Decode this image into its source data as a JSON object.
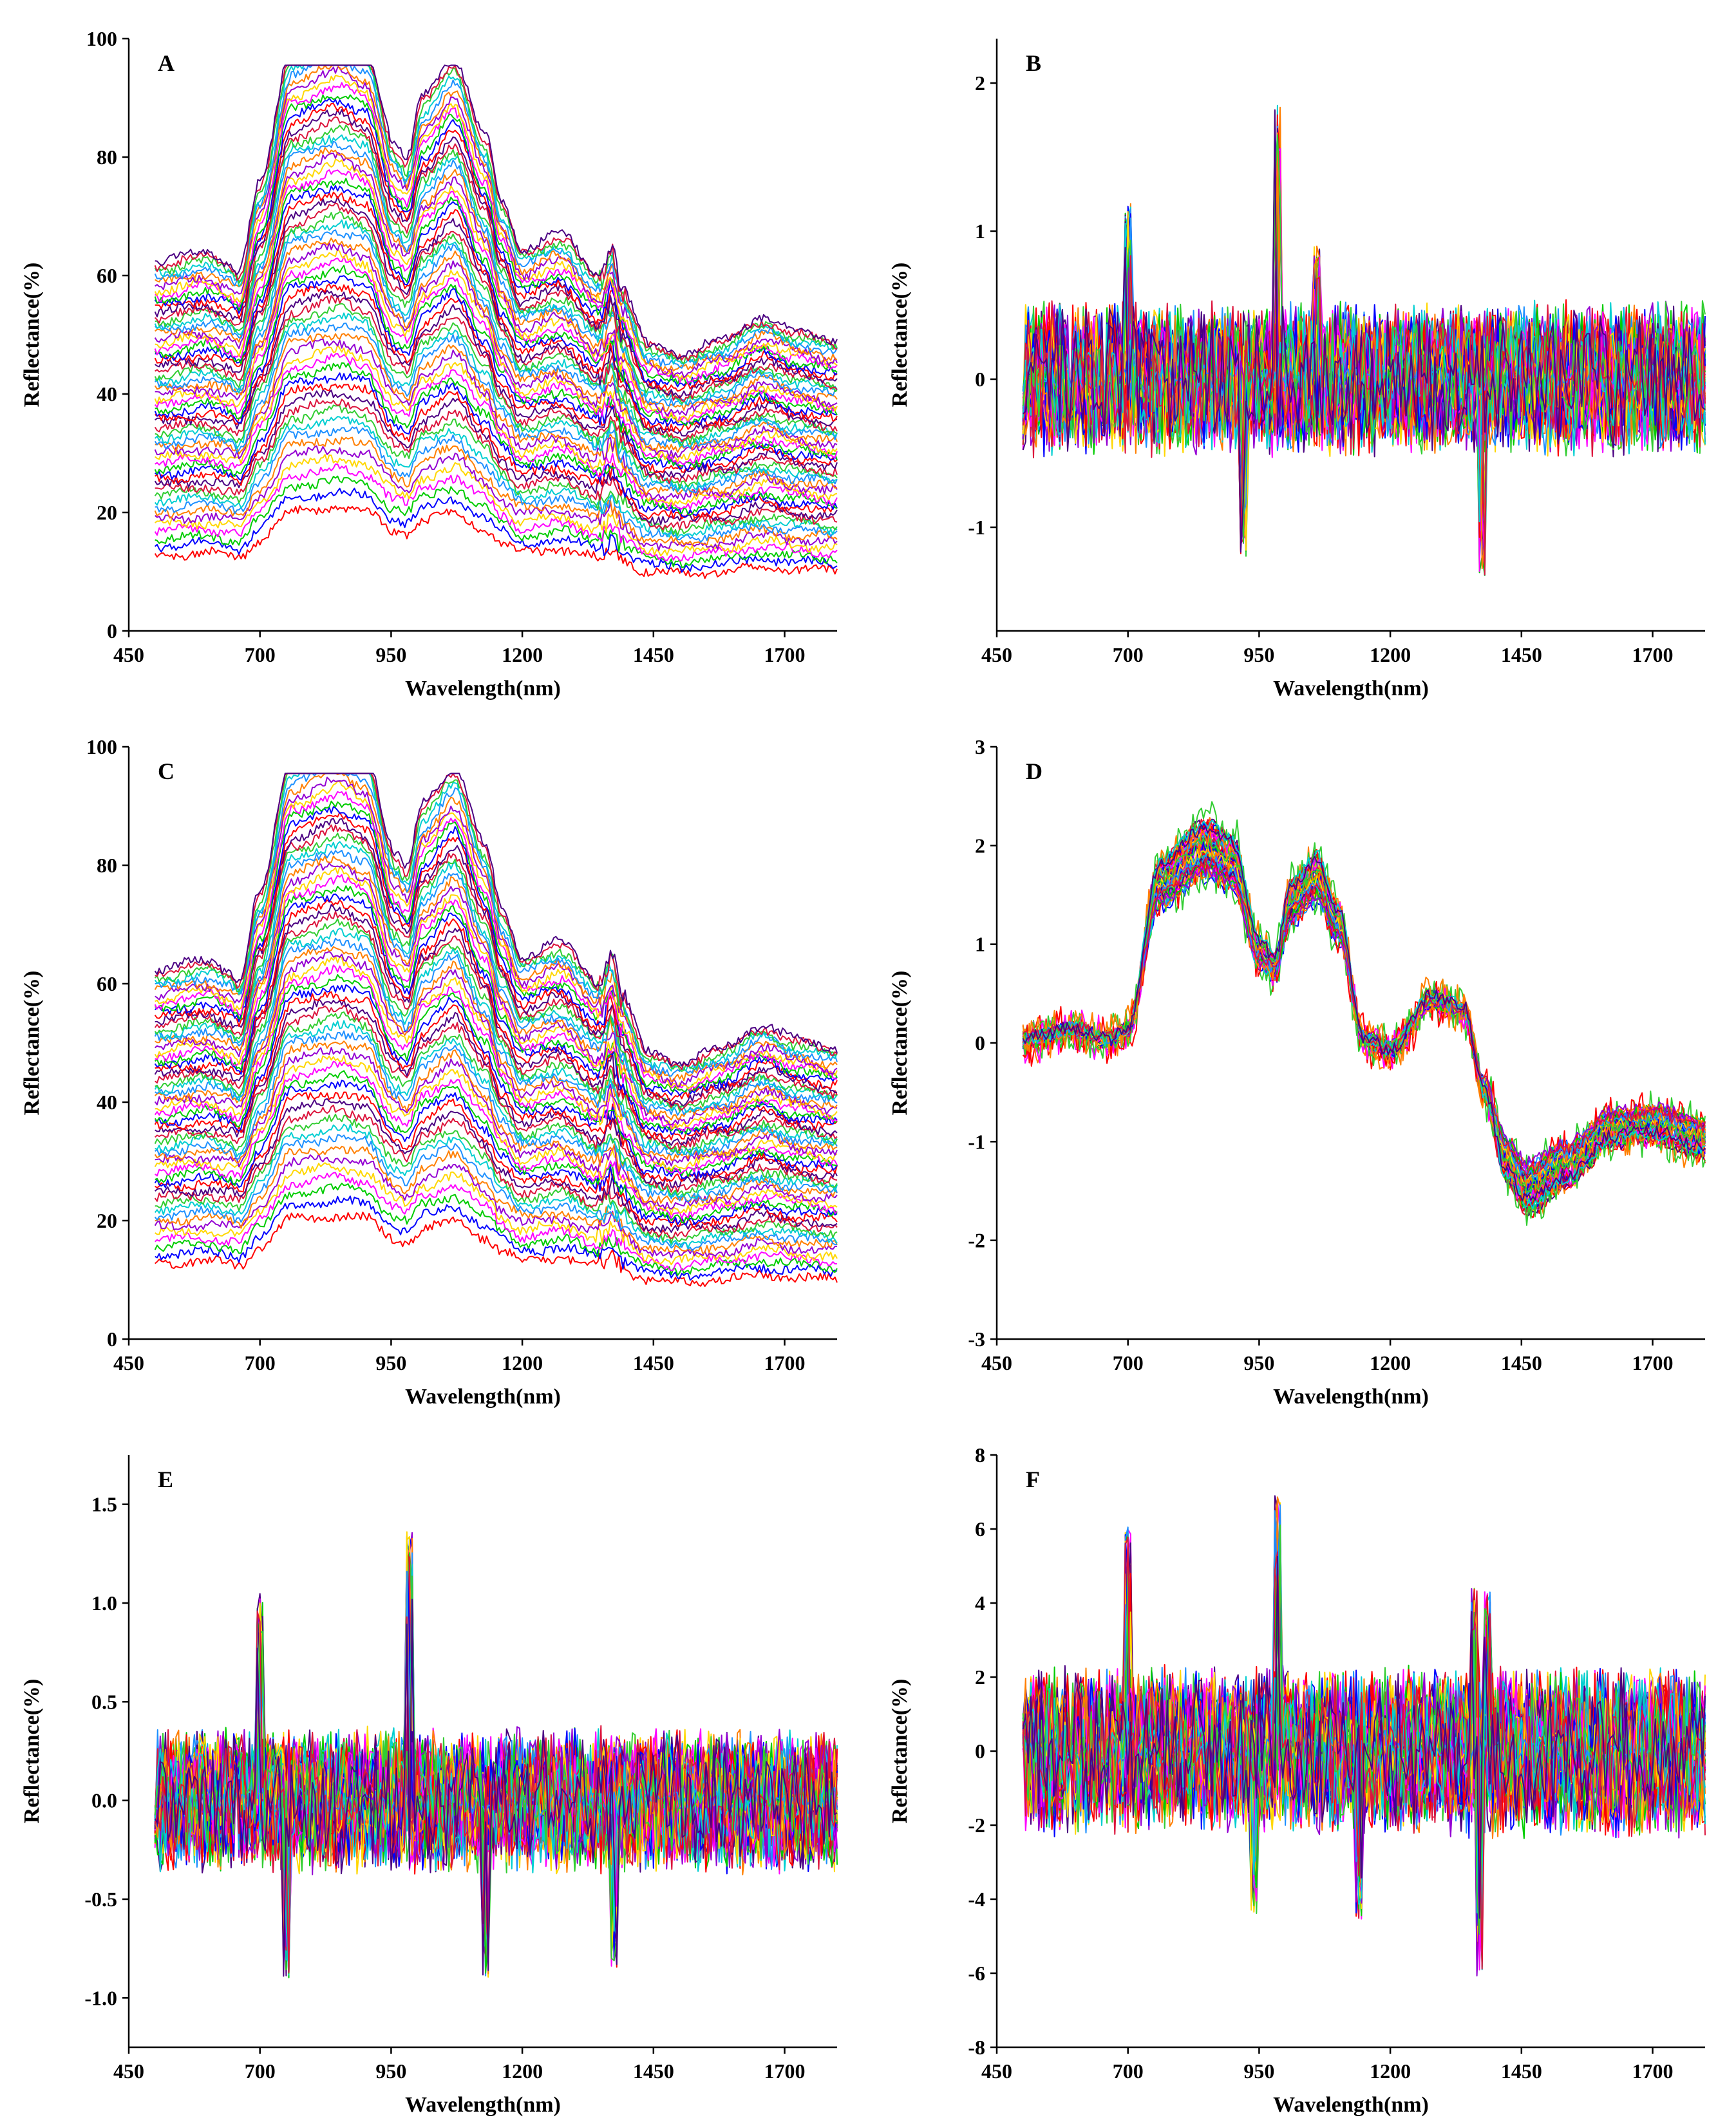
{
  "figure": {
    "series_count_per_panel": 60,
    "palette": [
      "#ff0000",
      "#0000ff",
      "#00cc00",
      "#ff00ff",
      "#ffd700",
      "#9400d3",
      "#ff7f00",
      "#1e90ff",
      "#00ced1",
      "#32cd32",
      "#dc143c",
      "#4b0082"
    ]
  },
  "chart_data": [
    {
      "id": "A",
      "type": "line",
      "panel_label": "A",
      "xlabel": "Wavelength(nm)",
      "ylabel": "Reflectance(%)",
      "xlim": [
        450,
        1800
      ],
      "ylim": [
        0,
        100
      ],
      "xticks": [
        450,
        700,
        950,
        1200,
        1450,
        1700
      ],
      "xtick_labels": [
        "450",
        "700",
        "950",
        "1200",
        "1450",
        "1700"
      ],
      "yticks": [
        0,
        20,
        40,
        60,
        80,
        100
      ],
      "ytick_labels": [
        "0",
        "20",
        "40",
        "60",
        "80",
        "100"
      ],
      "kind": "raw",
      "x_range": [
        500,
        1800
      ],
      "series_range": [
        16,
        78
      ],
      "shape_x": [
        500,
        600,
        640,
        660,
        700,
        760,
        850,
        900,
        960,
        980,
        1010,
        1070,
        1130,
        1160,
        1200,
        1270,
        1350,
        1370,
        1390,
        1440,
        1500,
        1580,
        1660,
        1720,
        1800
      ],
      "shape_y": [
        0.8,
        0.82,
        0.8,
        0.78,
        0.97,
        1.26,
        1.3,
        1.27,
        1.05,
        1.02,
        1.16,
        1.24,
        1.07,
        0.93,
        0.83,
        0.86,
        0.77,
        0.83,
        0.74,
        0.62,
        0.6,
        0.63,
        0.68,
        0.65,
        0.63
      ]
    },
    {
      "id": "B",
      "type": "line",
      "panel_label": "B",
      "xlabel": "Wavelength(nm)",
      "ylabel": "Reflectance(%)",
      "xlim": [
        450,
        1800
      ],
      "ylim": [
        -1.7,
        2.3
      ],
      "xticks": [
        450,
        700,
        950,
        1200,
        1450,
        1700
      ],
      "xtick_labels": [
        "450",
        "700",
        "950",
        "1200",
        "1450",
        "1700"
      ],
      "yticks": [
        -1,
        0,
        1,
        2
      ],
      "ytick_labels": [
        "-1",
        "0",
        "1",
        "2"
      ],
      "kind": "noise",
      "x_range": [
        500,
        1800
      ],
      "noise_amplitude": 0.45,
      "spikes": [
        [
          700,
          1.2
        ],
        [
          985,
          1.85
        ],
        [
          1060,
          0.9
        ],
        [
          1375,
          -1.35
        ],
        [
          920,
          -1.2
        ]
      ]
    },
    {
      "id": "C",
      "type": "line",
      "panel_label": "C",
      "xlabel": "Wavelength(nm)",
      "ylabel": "Reflectance(%)",
      "xlim": [
        450,
        1800
      ],
      "ylim": [
        0,
        100
      ],
      "xticks": [
        450,
        700,
        950,
        1200,
        1450,
        1700
      ],
      "xtick_labels": [
        "450",
        "700",
        "950",
        "1200",
        "1450",
        "1700"
      ],
      "yticks": [
        0,
        20,
        40,
        60,
        80,
        100
      ],
      "ytick_labels": [
        "0",
        "20",
        "40",
        "60",
        "80",
        "100"
      ],
      "kind": "raw",
      "x_range": [
        500,
        1800
      ],
      "series_range": [
        16,
        78
      ],
      "shape_x": [
        500,
        600,
        640,
        660,
        700,
        760,
        850,
        900,
        960,
        980,
        1010,
        1070,
        1130,
        1160,
        1200,
        1270,
        1350,
        1370,
        1390,
        1440,
        1500,
        1580,
        1660,
        1720,
        1800
      ],
      "shape_y": [
        0.8,
        0.82,
        0.8,
        0.78,
        0.97,
        1.26,
        1.3,
        1.27,
        1.05,
        1.02,
        1.16,
        1.24,
        1.07,
        0.93,
        0.83,
        0.86,
        0.77,
        0.83,
        0.74,
        0.62,
        0.6,
        0.63,
        0.68,
        0.65,
        0.63
      ]
    },
    {
      "id": "D",
      "type": "line",
      "panel_label": "D",
      "xlabel": "Wavelength(nm)",
      "ylabel": "Reflectance(%)",
      "xlim": [
        450,
        1800
      ],
      "ylim": [
        -3,
        3
      ],
      "xticks": [
        450,
        700,
        950,
        1200,
        1450,
        1700
      ],
      "xtick_labels": [
        "450",
        "700",
        "950",
        "1200",
        "1450",
        "1700"
      ],
      "yticks": [
        -3,
        -2,
        -1,
        0,
        1,
        2,
        3
      ],
      "ytick_labels": [
        "-3",
        "-2",
        "-1",
        "0",
        "1",
        "2",
        "3"
      ],
      "kind": "snv",
      "x_range": [
        500,
        1800
      ],
      "shape_x": [
        500,
        600,
        660,
        700,
        760,
        850,
        900,
        950,
        980,
        1010,
        1060,
        1100,
        1150,
        1200,
        1280,
        1340,
        1380,
        1420,
        1460,
        1540,
        1620,
        1700,
        1800
      ],
      "shape_y": [
        -0.1,
        0.0,
        -0.1,
        0.0,
        1.5,
        1.85,
        1.7,
        0.8,
        0.65,
        1.3,
        1.55,
        1.1,
        -0.1,
        -0.2,
        0.3,
        0.2,
        -0.6,
        -1.3,
        -1.6,
        -1.35,
        -1.0,
        -0.95,
        -1.1
      ]
    },
    {
      "id": "E",
      "type": "line",
      "panel_label": "E",
      "xlabel": "Wavelength(nm)",
      "ylabel": "Reflectance(%)",
      "xlim": [
        450,
        1800
      ],
      "ylim": [
        -1.25,
        1.75
      ],
      "xticks": [
        450,
        700,
        950,
        1200,
        1450,
        1700
      ],
      "xtick_labels": [
        "450",
        "700",
        "950",
        "1200",
        "1450",
        "1700"
      ],
      "yticks": [
        -1.0,
        -0.5,
        0.0,
        0.5,
        1.0,
        1.5
      ],
      "ytick_labels": [
        "-1.0",
        "-0.5",
        "0.0",
        "0.5",
        "1.0",
        "1.5"
      ],
      "kind": "noise",
      "x_range": [
        500,
        1800
      ],
      "noise_amplitude": 0.32,
      "spikes": [
        [
          700,
          1.05
        ],
        [
          985,
          1.37
        ],
        [
          750,
          -0.9
        ],
        [
          1130,
          -0.9
        ],
        [
          1375,
          -0.85
        ]
      ]
    },
    {
      "id": "F",
      "type": "line",
      "panel_label": "F",
      "xlabel": "Wavelength(nm)",
      "ylabel": "Reflectance(%)",
      "xlim": [
        450,
        1800
      ],
      "ylim": [
        -8,
        8
      ],
      "xticks": [
        450,
        700,
        950,
        1200,
        1450,
        1700
      ],
      "xtick_labels": [
        "450",
        "700",
        "950",
        "1200",
        "1450",
        "1700"
      ],
      "yticks": [
        -8,
        -6,
        -4,
        -2,
        0,
        2,
        4,
        6,
        8
      ],
      "ytick_labels": [
        "-8",
        "-6",
        "-4",
        "-2",
        "0",
        "2",
        "4",
        "6",
        "8"
      ],
      "kind": "noise",
      "x_range": [
        500,
        1800
      ],
      "noise_amplitude": 2.0,
      "spikes": [
        [
          700,
          6.1
        ],
        [
          985,
          6.9
        ],
        [
          1360,
          4.4
        ],
        [
          1385,
          4.3
        ],
        [
          1370,
          -6.1
        ],
        [
          1140,
          -4.6
        ],
        [
          940,
          -4.4
        ]
      ]
    }
  ]
}
